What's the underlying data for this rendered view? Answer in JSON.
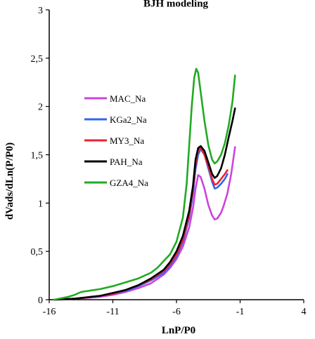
{
  "chart_data": {
    "type": "line",
    "title": "BJH modeling",
    "xlabel": "LnP/P0",
    "ylabel": "dVads/dLn(P/P0)",
    "xlim": [
      -16,
      4
    ],
    "ylim": [
      0,
      3
    ],
    "xticks": [
      "-16",
      "-11",
      "-6",
      "-1",
      "4"
    ],
    "yticks": [
      "0",
      "0,5",
      "1",
      "1,5",
      "2",
      "2,5",
      "3"
    ],
    "grid": false,
    "legend_position": "left-center",
    "series": [
      {
        "name": "MAC_Na",
        "color": "#cc44dd",
        "x": [
          -15.6,
          -14,
          -12,
          -11,
          -10,
          -9,
          -8,
          -7,
          -6.5,
          -6,
          -5.5,
          -5,
          -4.7,
          -4.5,
          -4.3,
          -4.1,
          -3.8,
          -3.5,
          -3.2,
          -3.0,
          -2.8,
          -2.5,
          -2.3,
          -2.0,
          -1.7,
          -1.4
        ],
        "y": [
          0.0,
          0.01,
          0.03,
          0.05,
          0.08,
          0.12,
          0.17,
          0.26,
          0.33,
          0.42,
          0.55,
          0.75,
          0.95,
          1.15,
          1.29,
          1.27,
          1.15,
          0.98,
          0.87,
          0.83,
          0.84,
          0.9,
          0.97,
          1.1,
          1.3,
          1.58
        ]
      },
      {
        "name": "KGa2_Na",
        "color": "#3366ee",
        "x": [
          -15.6,
          -14,
          -12,
          -11,
          -10,
          -9,
          -8,
          -7,
          -6.5,
          -6,
          -5.5,
          -5,
          -4.7,
          -4.5,
          -4.3,
          -4.1,
          -3.8,
          -3.5,
          -3.2,
          -3.0,
          -2.8,
          -2.5,
          -2.2,
          -2.0
        ],
        "y": [
          0.0,
          0.01,
          0.04,
          0.06,
          0.09,
          0.14,
          0.2,
          0.28,
          0.35,
          0.45,
          0.6,
          0.85,
          1.1,
          1.35,
          1.5,
          1.56,
          1.5,
          1.36,
          1.22,
          1.15,
          1.16,
          1.2,
          1.25,
          1.3
        ]
      },
      {
        "name": "MY3_Na",
        "color": "#ee2233",
        "x": [
          -15.6,
          -14,
          -12,
          -11,
          -10,
          -9,
          -8,
          -7,
          -6.5,
          -6,
          -5.5,
          -5,
          -4.7,
          -4.5,
          -4.3,
          -4.1,
          -3.8,
          -3.5,
          -3.2,
          -3.0,
          -2.8,
          -2.5,
          -2.2,
          -2.0
        ],
        "y": [
          0.0,
          0.01,
          0.04,
          0.06,
          0.1,
          0.15,
          0.21,
          0.3,
          0.37,
          0.47,
          0.62,
          0.88,
          1.15,
          1.4,
          1.55,
          1.57,
          1.5,
          1.38,
          1.25,
          1.19,
          1.2,
          1.25,
          1.3,
          1.34
        ]
      },
      {
        "name": "PAH_Na",
        "color": "#000000",
        "x": [
          -15.6,
          -14,
          -12,
          -11,
          -10,
          -9,
          -8,
          -7,
          -6.5,
          -6,
          -5.5,
          -5,
          -4.7,
          -4.5,
          -4.3,
          -4.1,
          -3.8,
          -3.5,
          -3.2,
          -3.0,
          -2.8,
          -2.5,
          -2.2,
          -1.9,
          -1.6,
          -1.4
        ],
        "y": [
          0.0,
          0.01,
          0.04,
          0.07,
          0.1,
          0.15,
          0.22,
          0.31,
          0.39,
          0.5,
          0.66,
          0.92,
          1.18,
          1.45,
          1.57,
          1.59,
          1.54,
          1.42,
          1.3,
          1.26,
          1.28,
          1.36,
          1.5,
          1.68,
          1.85,
          1.98
        ]
      },
      {
        "name": "GZA4_Na",
        "color": "#22aa22",
        "x": [
          -15.6,
          -14.5,
          -14,
          -13.5,
          -13,
          -12,
          -11,
          -10,
          -9,
          -8,
          -7.5,
          -7,
          -6.5,
          -6,
          -5.5,
          -5.2,
          -5.0,
          -4.8,
          -4.6,
          -4.45,
          -4.3,
          -4.1,
          -3.8,
          -3.5,
          -3.2,
          -3.0,
          -2.8,
          -2.5,
          -2.2,
          -1.9,
          -1.6,
          -1.4
        ],
        "y": [
          0.0,
          0.03,
          0.05,
          0.08,
          0.09,
          0.11,
          0.14,
          0.18,
          0.22,
          0.28,
          0.33,
          0.4,
          0.47,
          0.6,
          0.85,
          1.2,
          1.6,
          2.0,
          2.3,
          2.39,
          2.35,
          2.15,
          1.85,
          1.6,
          1.45,
          1.41,
          1.43,
          1.5,
          1.62,
          1.8,
          2.05,
          2.32
        ]
      }
    ]
  }
}
